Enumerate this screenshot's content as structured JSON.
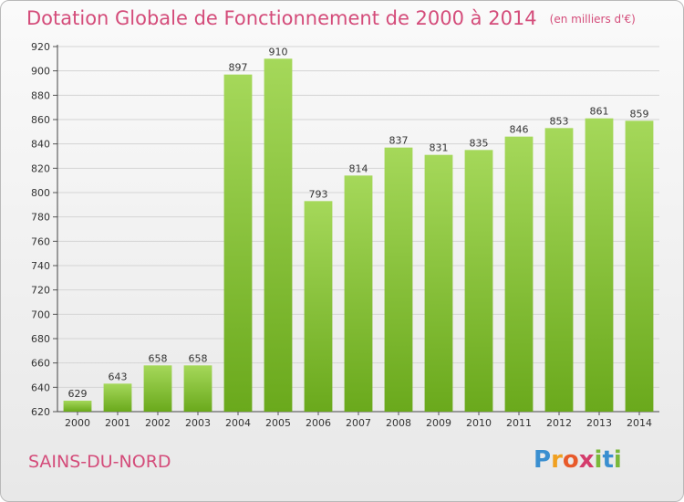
{
  "header": {
    "title": "Dotation Globale de Fonctionnement de 2000 à 2014",
    "unit": "(en milliers d'€)"
  },
  "footer": {
    "commune": "SAINS-DU-NORD",
    "logo": {
      "letters": [
        "P",
        "r",
        "o",
        "x",
        "i",
        "t",
        "i"
      ],
      "colors": [
        "#3a8fd0",
        "#f0a020",
        "#e85a2a",
        "#d43c6c",
        "#7ab83a",
        "#3a8fd0",
        "#7ab83a"
      ]
    }
  },
  "chart_data": {
    "type": "bar",
    "categories": [
      "2000",
      "2001",
      "2002",
      "2003",
      "2004",
      "2005",
      "2006",
      "2007",
      "2008",
      "2009",
      "2010",
      "2011",
      "2012",
      "2013",
      "2014"
    ],
    "values": [
      629,
      643,
      658,
      658,
      897,
      910,
      793,
      814,
      837,
      831,
      835,
      846,
      853,
      861,
      859
    ],
    "ylim": [
      620,
      920
    ],
    "yticks": [
      620,
      640,
      660,
      680,
      700,
      720,
      740,
      760,
      780,
      800,
      820,
      840,
      860,
      880,
      900,
      920
    ],
    "grid": true,
    "colors": {
      "bar_top": "#a5d85a",
      "bar_bottom": "#6aa91c",
      "grid": "#d4d4d4"
    }
  }
}
